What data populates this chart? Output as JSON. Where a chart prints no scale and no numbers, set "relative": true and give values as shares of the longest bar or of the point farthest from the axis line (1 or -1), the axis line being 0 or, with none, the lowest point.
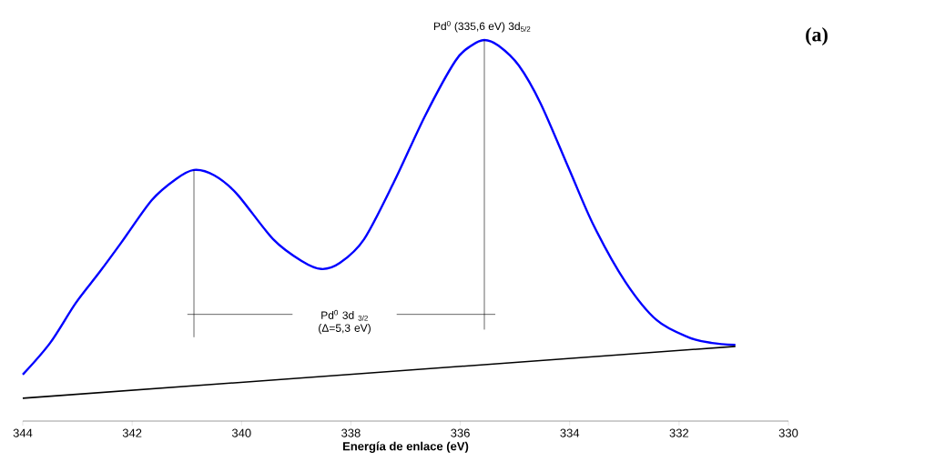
{
  "chart_data": {
    "type": "line",
    "relative": true,
    "xlabel": "Energía de enlace (eV)",
    "xlim": [
      344,
      330
    ],
    "xticks": [
      344,
      342,
      340,
      338,
      336,
      334,
      332,
      330
    ],
    "series": [
      {
        "color": "#0000ff",
        "x": [
          344,
          343.5,
          343.03,
          342.6,
          342.2,
          341.64,
          341.2,
          340.87,
          340.5,
          340.09,
          339.42,
          338.9,
          338.54,
          338.2,
          337.76,
          337.21,
          336.64,
          336.09,
          335.8,
          335.56,
          335.3,
          334.93,
          334.53,
          334.01,
          333.56,
          332.98,
          332.41,
          331.83,
          331.4,
          330.97
        ],
        "values": [
          0.122,
          0.205,
          0.31,
          0.39,
          0.468,
          0.58,
          0.635,
          0.659,
          0.645,
          0.597,
          0.477,
          0.42,
          0.399,
          0.415,
          0.477,
          0.628,
          0.802,
          0.945,
          0.985,
          1.0,
          0.985,
          0.933,
          0.833,
          0.661,
          0.513,
          0.365,
          0.265,
          0.22,
          0.205,
          0.2
        ]
      },
      {
        "color": "#000000",
        "x": [
          344,
          330.97
        ],
        "values": [
          0.06,
          0.196
        ]
      }
    ],
    "annotations": [
      {
        "text": "Pd$^{0}$ (335,6 eV) 3d$_{5/2}$",
        "x": 335.6,
        "y": 1.0
      },
      "Pd$^{0}$ 3d $_{3/2}$ (Δ=5,3 eV)",
      "(a)"
    ]
  }
}
